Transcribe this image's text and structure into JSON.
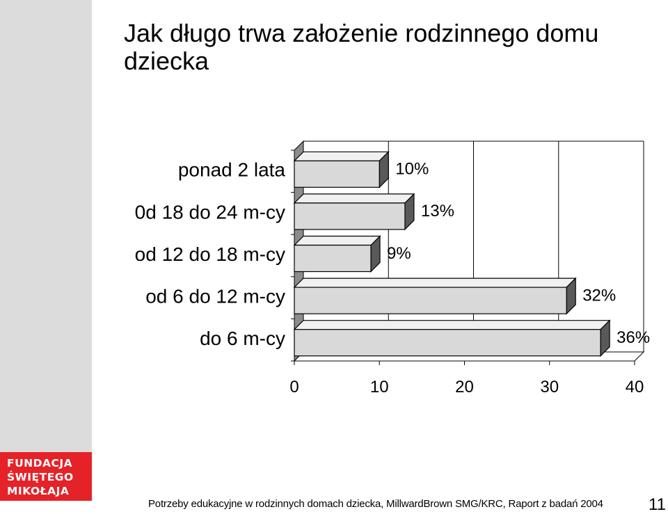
{
  "slide": {
    "title": "Jak długo trwa założenie rodzinnego domu dziecka",
    "footer": "Potrzeby edukacyjne w rodzinnych domach dziecka, MillwardBrown SMG/KRC, Raport z badań 2004",
    "page_number": "11"
  },
  "logo": {
    "lines": [
      "FUNDACJA",
      "ŚWIĘTEGO",
      "MIKOŁAJA"
    ]
  },
  "colors": {
    "bar_front": "#d9d9d9",
    "bar_top": "#f0f0f0",
    "bar_side": "#595959",
    "logo_red": "#e52228",
    "left_strip": "#dcdcdc"
  },
  "chart_data": {
    "type": "bar",
    "orientation": "horizontal",
    "style": "3d",
    "categories": [
      "ponad 2 lata",
      "0d 18 do 24 m-cy",
      "od 12 do 18 m-cy",
      "od 6 do 12 m-cy",
      "do 6 m-cy"
    ],
    "values": [
      10,
      13,
      9,
      32,
      36
    ],
    "value_labels": [
      "10%",
      "13%",
      "9%",
      "32%",
      "36%"
    ],
    "xlim": [
      0,
      40
    ],
    "xticks": [
      0,
      10,
      20,
      30,
      40
    ],
    "grid": "vertical",
    "legend": "none"
  }
}
